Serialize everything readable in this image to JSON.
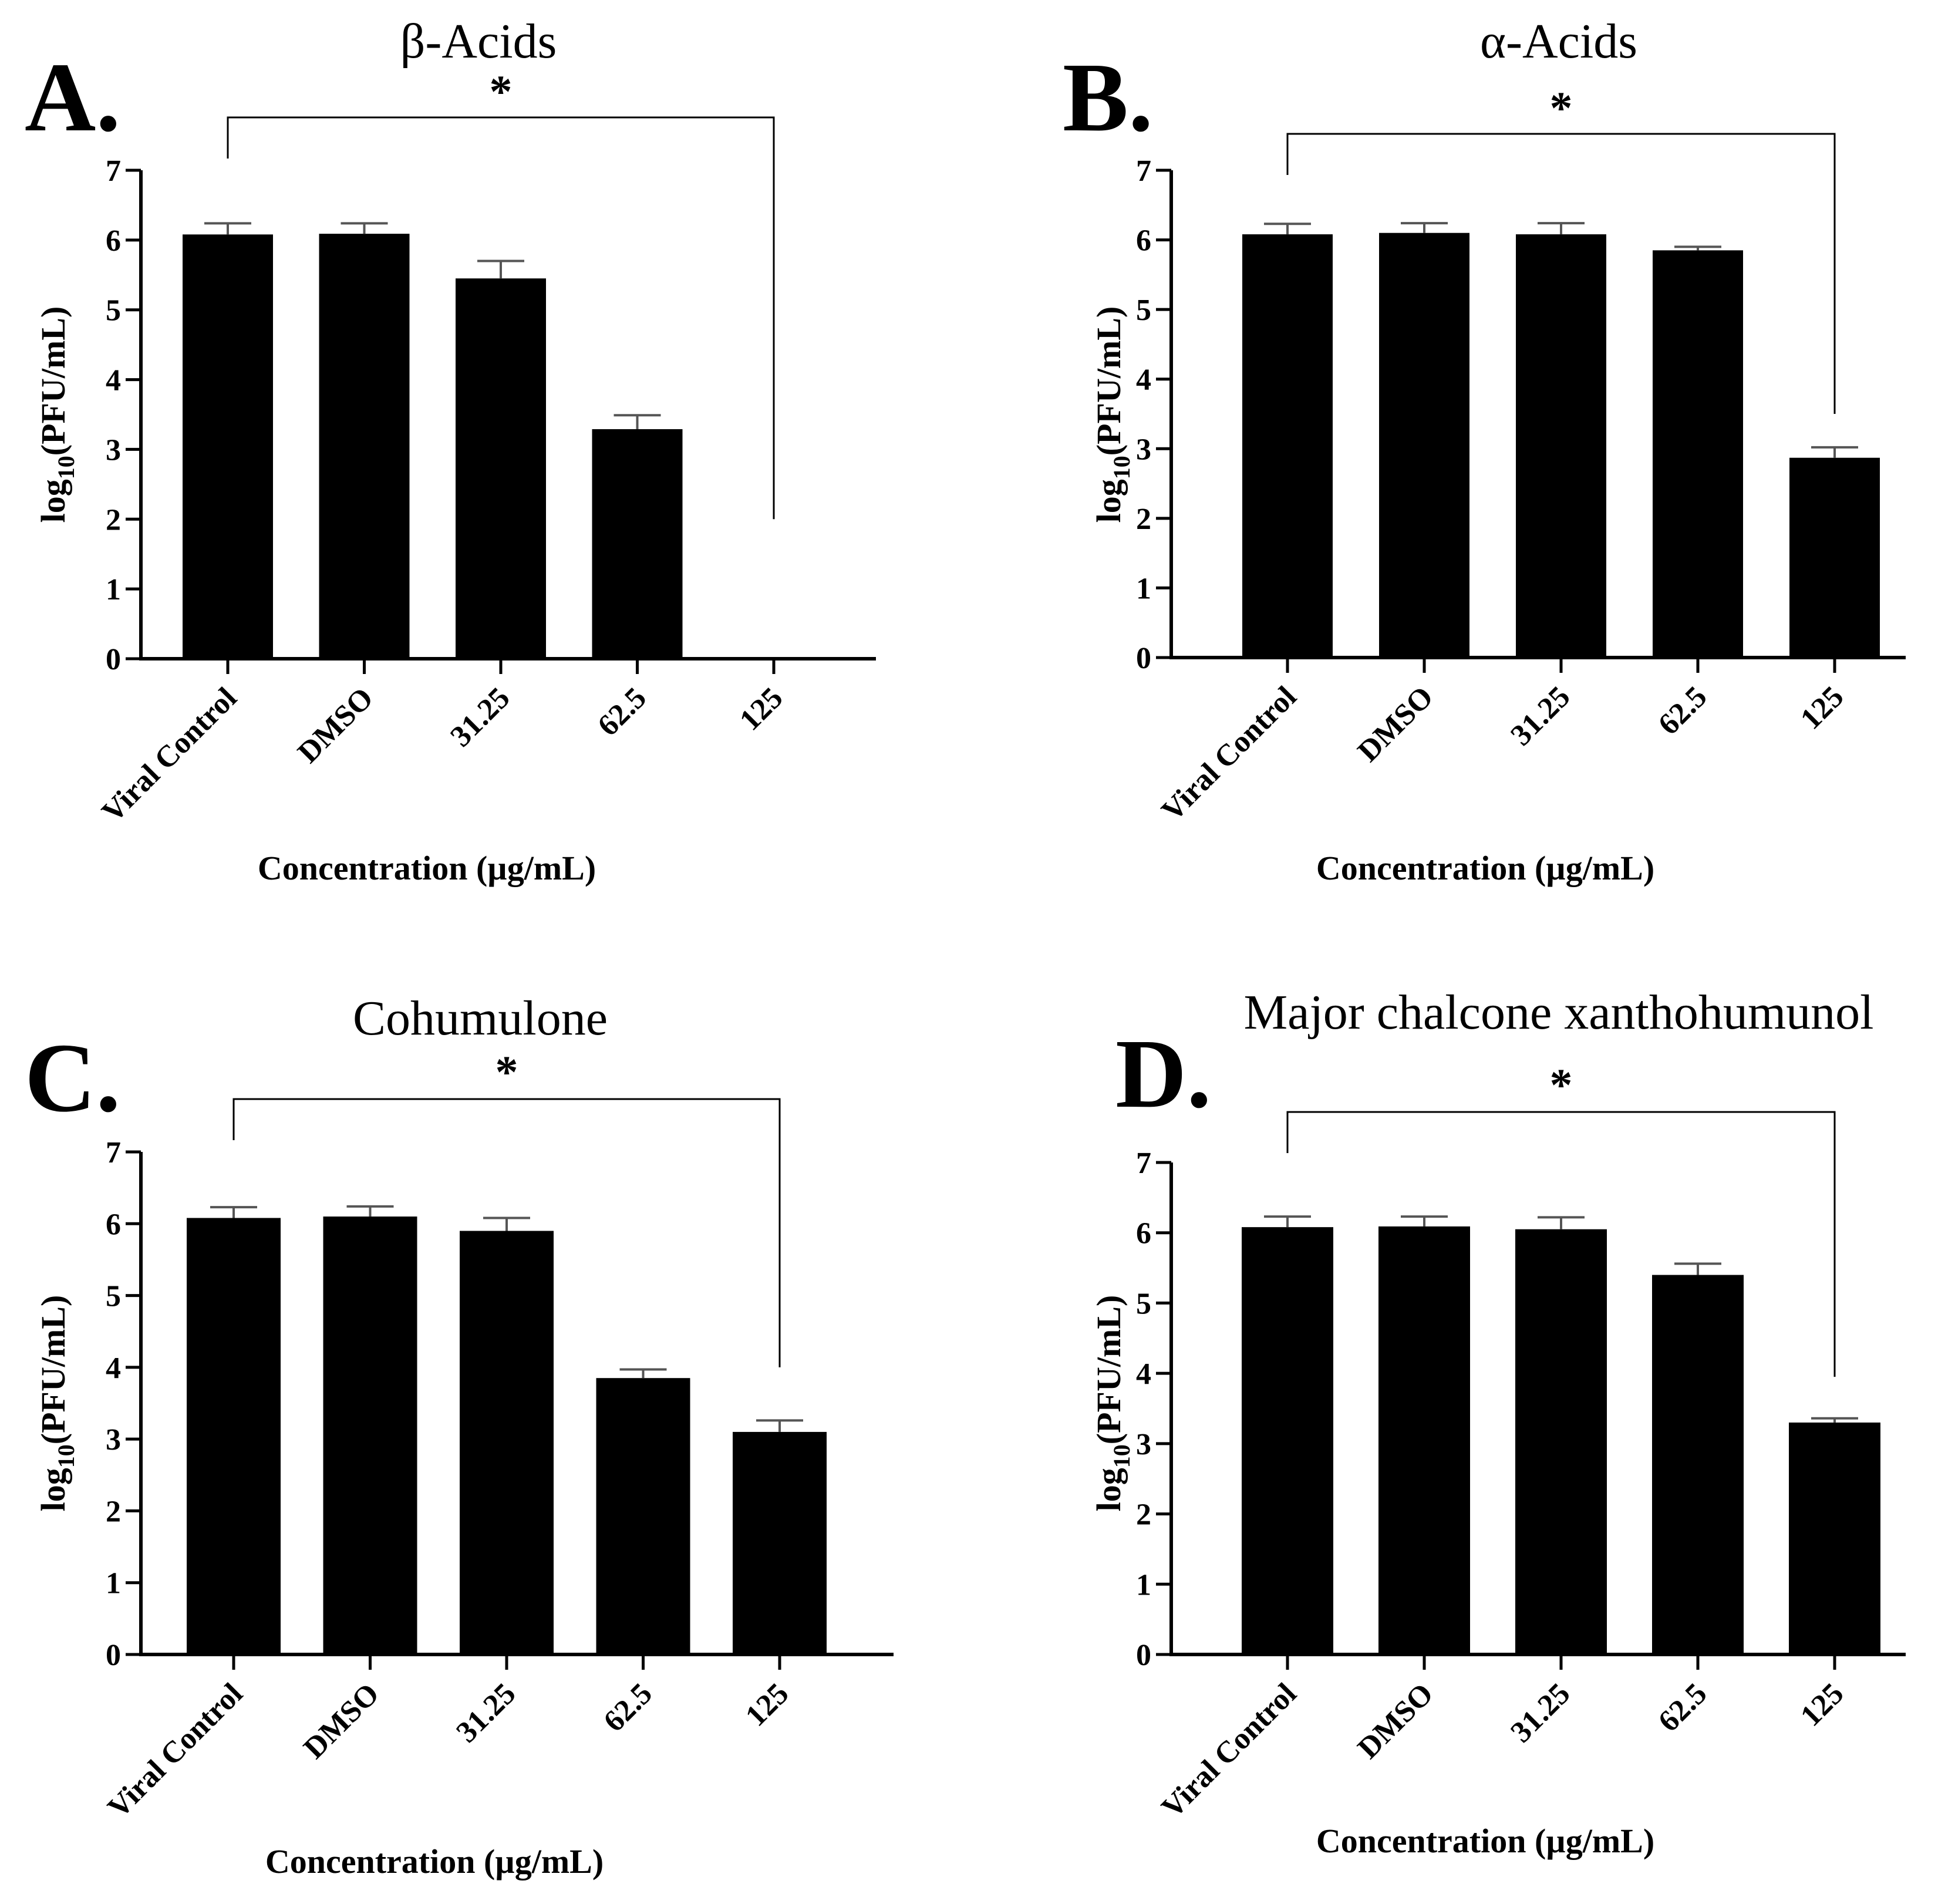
{
  "chart_data": [
    {
      "type": "bar",
      "panel_letter": "A.",
      "title": "β-Acids",
      "categories": [
        "Viral Control",
        "DMSO",
        "31.25",
        "62.5",
        "125"
      ],
      "values": [
        6.08,
        6.09,
        5.45,
        3.29,
        0
      ],
      "errors": [
        0.16,
        0.15,
        0.25,
        0.2,
        0
      ],
      "xlabel": "Concentration (µg/mL)",
      "ylabel_prefix": "log",
      "ylabel_sub": "10",
      "ylabel_suffix": "(PFU/mL)",
      "ylim": [
        0,
        7
      ],
      "yticks": [
        "0",
        "1",
        "2",
        "3",
        "4",
        "5",
        "6",
        "7"
      ],
      "significance": {
        "from": 0,
        "to": 4,
        "label": "*",
        "to_value": 2.0
      }
    },
    {
      "type": "bar",
      "panel_letter": "B.",
      "title": "α-Acids",
      "categories": [
        "Viral Control",
        "DMSO",
        "31.25",
        "62.5",
        "125"
      ],
      "values": [
        6.08,
        6.1,
        6.08,
        5.85,
        2.87
      ],
      "errors": [
        0.15,
        0.14,
        0.16,
        0.05,
        0.15
      ],
      "xlabel": "Concentration (µg/mL)",
      "ylabel_prefix": "log",
      "ylabel_sub": "10",
      "ylabel_suffix": "(PFU/mL)",
      "ylim": [
        0,
        7
      ],
      "yticks": [
        "0",
        "1",
        "2",
        "3",
        "4",
        "5",
        "6",
        "7"
      ],
      "significance": {
        "from": 0,
        "to": 4,
        "label": "*",
        "to_value": 3.5
      }
    },
    {
      "type": "bar",
      "panel_letter": "C.",
      "title": "Cohumulone",
      "categories": [
        "Viral Control",
        "DMSO",
        "31.25",
        "62.5",
        "125"
      ],
      "values": [
        6.08,
        6.1,
        5.9,
        3.85,
        3.1
      ],
      "errors": [
        0.15,
        0.14,
        0.18,
        0.12,
        0.16
      ],
      "xlabel": "Concentration (µg/mL)",
      "ylabel_prefix": "log",
      "ylabel_sub": "10",
      "ylabel_suffix": "(PFU/mL)",
      "ylim": [
        0,
        7
      ],
      "yticks": [
        "0",
        "1",
        "2",
        "3",
        "4",
        "5",
        "6",
        "7"
      ],
      "significance": {
        "from": 0,
        "to": 4,
        "label": "*",
        "to_value": 4.0
      }
    },
    {
      "type": "bar",
      "panel_letter": "D.",
      "title": "Major chalcone xanthohumunol",
      "categories": [
        "Viral Control",
        "DMSO",
        "31.25",
        "62.5",
        "125"
      ],
      "values": [
        6.08,
        6.09,
        6.05,
        5.4,
        3.3
      ],
      "errors": [
        0.15,
        0.14,
        0.17,
        0.16,
        0.06
      ],
      "xlabel": "Concentration (µg/mL)",
      "ylabel_prefix": "log",
      "ylabel_sub": "10",
      "ylabel_suffix": "(PFU/mL)",
      "ylim": [
        0,
        7
      ],
      "yticks": [
        "0",
        "1",
        "2",
        "3",
        "4",
        "5",
        "6",
        "7"
      ],
      "significance": {
        "from": 0,
        "to": 4,
        "label": "*",
        "to_value": 3.95
      }
    }
  ],
  "colors": {
    "bar": "#000000",
    "axis": "#000000",
    "error_bar": "#555555",
    "background": "#ffffff"
  }
}
